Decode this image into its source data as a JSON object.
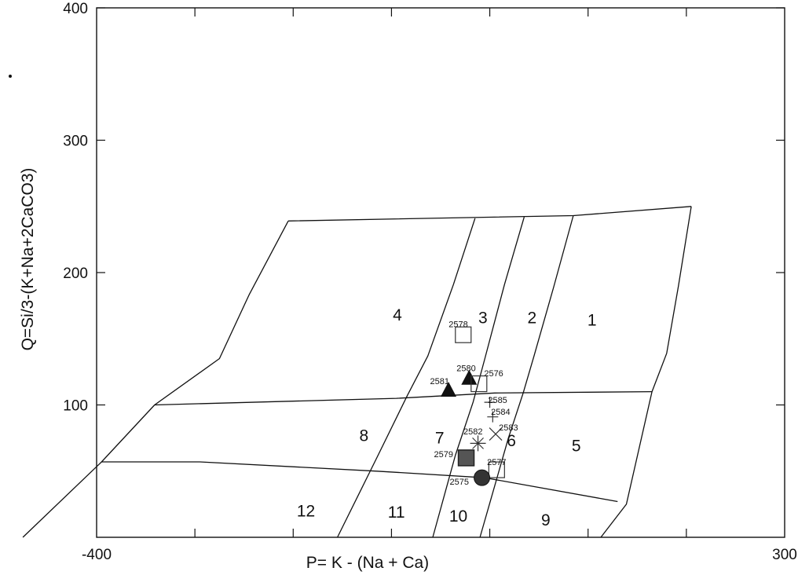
{
  "chart_data": {
    "type": "scatter",
    "xlabel": "P= K - (Na + Ca)",
    "ylabel": "Q=Si/3-(K+Na+2CaCO3)",
    "xlim": [
      -400,
      300
    ],
    "ylim": [
      0,
      400
    ],
    "x_tick_labels": [
      {
        "value": -400,
        "label": "-400"
      },
      {
        "value": 300,
        "label": "300"
      }
    ],
    "y_tick_labels": [
      {
        "value": 100,
        "label": "100"
      },
      {
        "value": 200,
        "label": "200"
      },
      {
        "value": 300,
        "label": "300"
      },
      {
        "value": 400,
        "label": "400"
      }
    ],
    "x_minor_ticks": [
      -300,
      -200,
      -100,
      0,
      100,
      200
    ],
    "grid": false,
    "field_boundaries": [
      [
        [
          -205,
          239
        ],
        [
          85,
          243
        ],
        [
          205,
          250
        ]
      ],
      [
        [
          -341,
          100
        ],
        [
          -95,
          105
        ],
        [
          5,
          109
        ],
        [
          165,
          110
        ]
      ],
      [
        [
          -395,
          57
        ],
        [
          -295,
          57
        ],
        [
          -115,
          50
        ],
        [
          -5,
          45
        ],
        [
          130,
          27
        ]
      ],
      [
        [
          -205,
          239
        ],
        [
          -245,
          183
        ],
        [
          -275,
          135
        ],
        [
          -341,
          100
        ],
        [
          -395,
          57
        ],
        [
          -475,
          0
        ]
      ],
      [
        [
          -15,
          241
        ],
        [
          -37,
          191
        ],
        [
          -63,
          137
        ],
        [
          -84,
          107
        ],
        [
          -115,
          60
        ],
        [
          -155,
          0
        ]
      ],
      [
        [
          35,
          242
        ],
        [
          15,
          191
        ],
        [
          -5,
          135
        ],
        [
          -17,
          102
        ],
        [
          -35,
          62
        ],
        [
          -58,
          0
        ]
      ],
      [
        [
          85,
          243
        ],
        [
          65,
          189
        ],
        [
          45,
          137
        ],
        [
          34,
          109
        ],
        [
          19,
          75
        ],
        [
          -10,
          0
        ]
      ],
      [
        [
          205,
          250
        ],
        [
          192,
          190
        ],
        [
          180,
          139
        ],
        [
          165,
          110
        ],
        [
          139,
          25
        ],
        [
          113,
          0
        ]
      ]
    ],
    "region_labels": [
      {
        "label": "1",
        "x": 104,
        "y": 164
      },
      {
        "label": "2",
        "x": 43,
        "y": 166
      },
      {
        "label": "3",
        "x": -7,
        "y": 166
      },
      {
        "label": "4",
        "x": -94,
        "y": 168
      },
      {
        "label": "5",
        "x": 88,
        "y": 69
      },
      {
        "label": "6",
        "x": 22,
        "y": 73
      },
      {
        "label": "7",
        "x": -51,
        "y": 75
      },
      {
        "label": "8",
        "x": -128,
        "y": 77
      },
      {
        "label": "9",
        "x": 57,
        "y": 13
      },
      {
        "label": "10",
        "x": -32,
        "y": 16
      },
      {
        "label": "11",
        "x": -95,
        "y": 19
      },
      {
        "label": "12",
        "x": -187,
        "y": 20
      }
    ],
    "points": [
      {
        "id": "2578",
        "marker": "square-open",
        "x": -27,
        "y": 153,
        "label": "2578",
        "lx": -32,
        "ly": 161
      },
      {
        "id": "2580",
        "marker": "triangle",
        "x": -21,
        "y": 120,
        "label": "2580",
        "lx": -24,
        "ly": 128
      },
      {
        "id": "2581",
        "marker": "triangle",
        "x": -42,
        "y": 111,
        "label": "2581",
        "lx": -51,
        "ly": 118
      },
      {
        "id": "2576",
        "marker": "square-open",
        "x": -11,
        "y": 116,
        "label": "2576",
        "lx": 4,
        "ly": 124
      },
      {
        "id": "2585",
        "marker": "plus",
        "x": 0,
        "y": 102,
        "label": "2585",
        "lx": 8,
        "ly": 104
      },
      {
        "id": "2584",
        "marker": "plus",
        "x": 3,
        "y": 91,
        "label": "2584",
        "lx": 11,
        "ly": 95
      },
      {
        "id": "2583",
        "marker": "x",
        "x": 6,
        "y": 78,
        "label": "2583",
        "lx": 19,
        "ly": 83
      },
      {
        "id": "2582",
        "marker": "asterisk",
        "x": -12,
        "y": 71,
        "label": "2582",
        "lx": -17,
        "ly": 80
      },
      {
        "id": "2579",
        "marker": "square-filled",
        "x": -24,
        "y": 60,
        "label": "2579",
        "lx": -47,
        "ly": 63
      },
      {
        "id": "2577",
        "marker": "square-open",
        "x": 7,
        "y": 51,
        "label": "2577",
        "lx": 7,
        "ly": 57
      },
      {
        "id": "2575",
        "marker": "circle-filled",
        "x": -8,
        "y": 45,
        "label": "2575",
        "lx": -31,
        "ly": 42
      }
    ]
  }
}
